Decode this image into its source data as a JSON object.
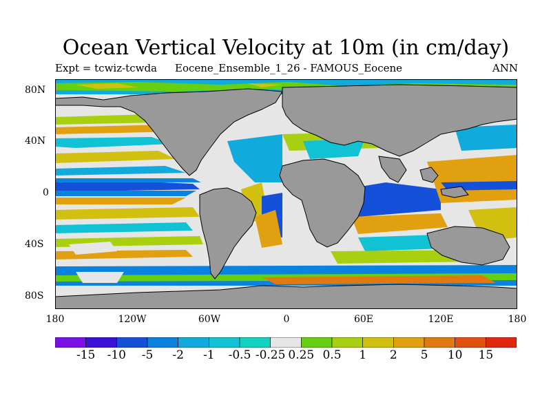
{
  "title": "Ocean Vertical Velocity at 10m (in cm/day)",
  "experiment": "Expt = tcwiz-tcwda",
  "ensemble": "Eocene_Ensemble_1_26 - FAMOUS_Eocene",
  "season": "ANN",
  "lat_labels": [
    "80N",
    "40N",
    "0",
    "40S",
    "80S"
  ],
  "lon_labels": [
    "180",
    "120W",
    "60W",
    "0",
    "60E",
    "120E",
    "180"
  ],
  "colorbar": {
    "labels": [
      "-15",
      "-10",
      "-5",
      "-2",
      "-1",
      "-0.5",
      "-0.25",
      "0.25",
      "0.5",
      "1",
      "2",
      "5",
      "10",
      "15"
    ],
    "colors": [
      "#7a10e6",
      "#3b10d8",
      "#1450d8",
      "#0a82e0",
      "#10aadc",
      "#10c2d4",
      "#10d2c0",
      "#e6e6e6",
      "#66d010",
      "#a8d010",
      "#d2c010",
      "#e0a010",
      "#e07a10",
      "#e05010",
      "#e02810"
    ]
  },
  "land_color": "#999999",
  "chart_data": {
    "type": "heatmap",
    "title": "Ocean Vertical Velocity at 10m (in cm/day)",
    "xlabel": "",
    "ylabel": "",
    "x_range": [
      -180,
      180
    ],
    "y_range": [
      -90,
      90
    ],
    "x_ticks": [
      "180",
      "120W",
      "60W",
      "0",
      "60E",
      "120E",
      "180"
    ],
    "y_ticks": [
      "80N",
      "40N",
      "0",
      "40S",
      "80S"
    ],
    "contour_levels": [
      -15,
      -10,
      -5,
      -2,
      -1,
      -0.5,
      -0.25,
      0.25,
      0.5,
      1,
      2,
      5,
      10,
      15
    ]
  }
}
